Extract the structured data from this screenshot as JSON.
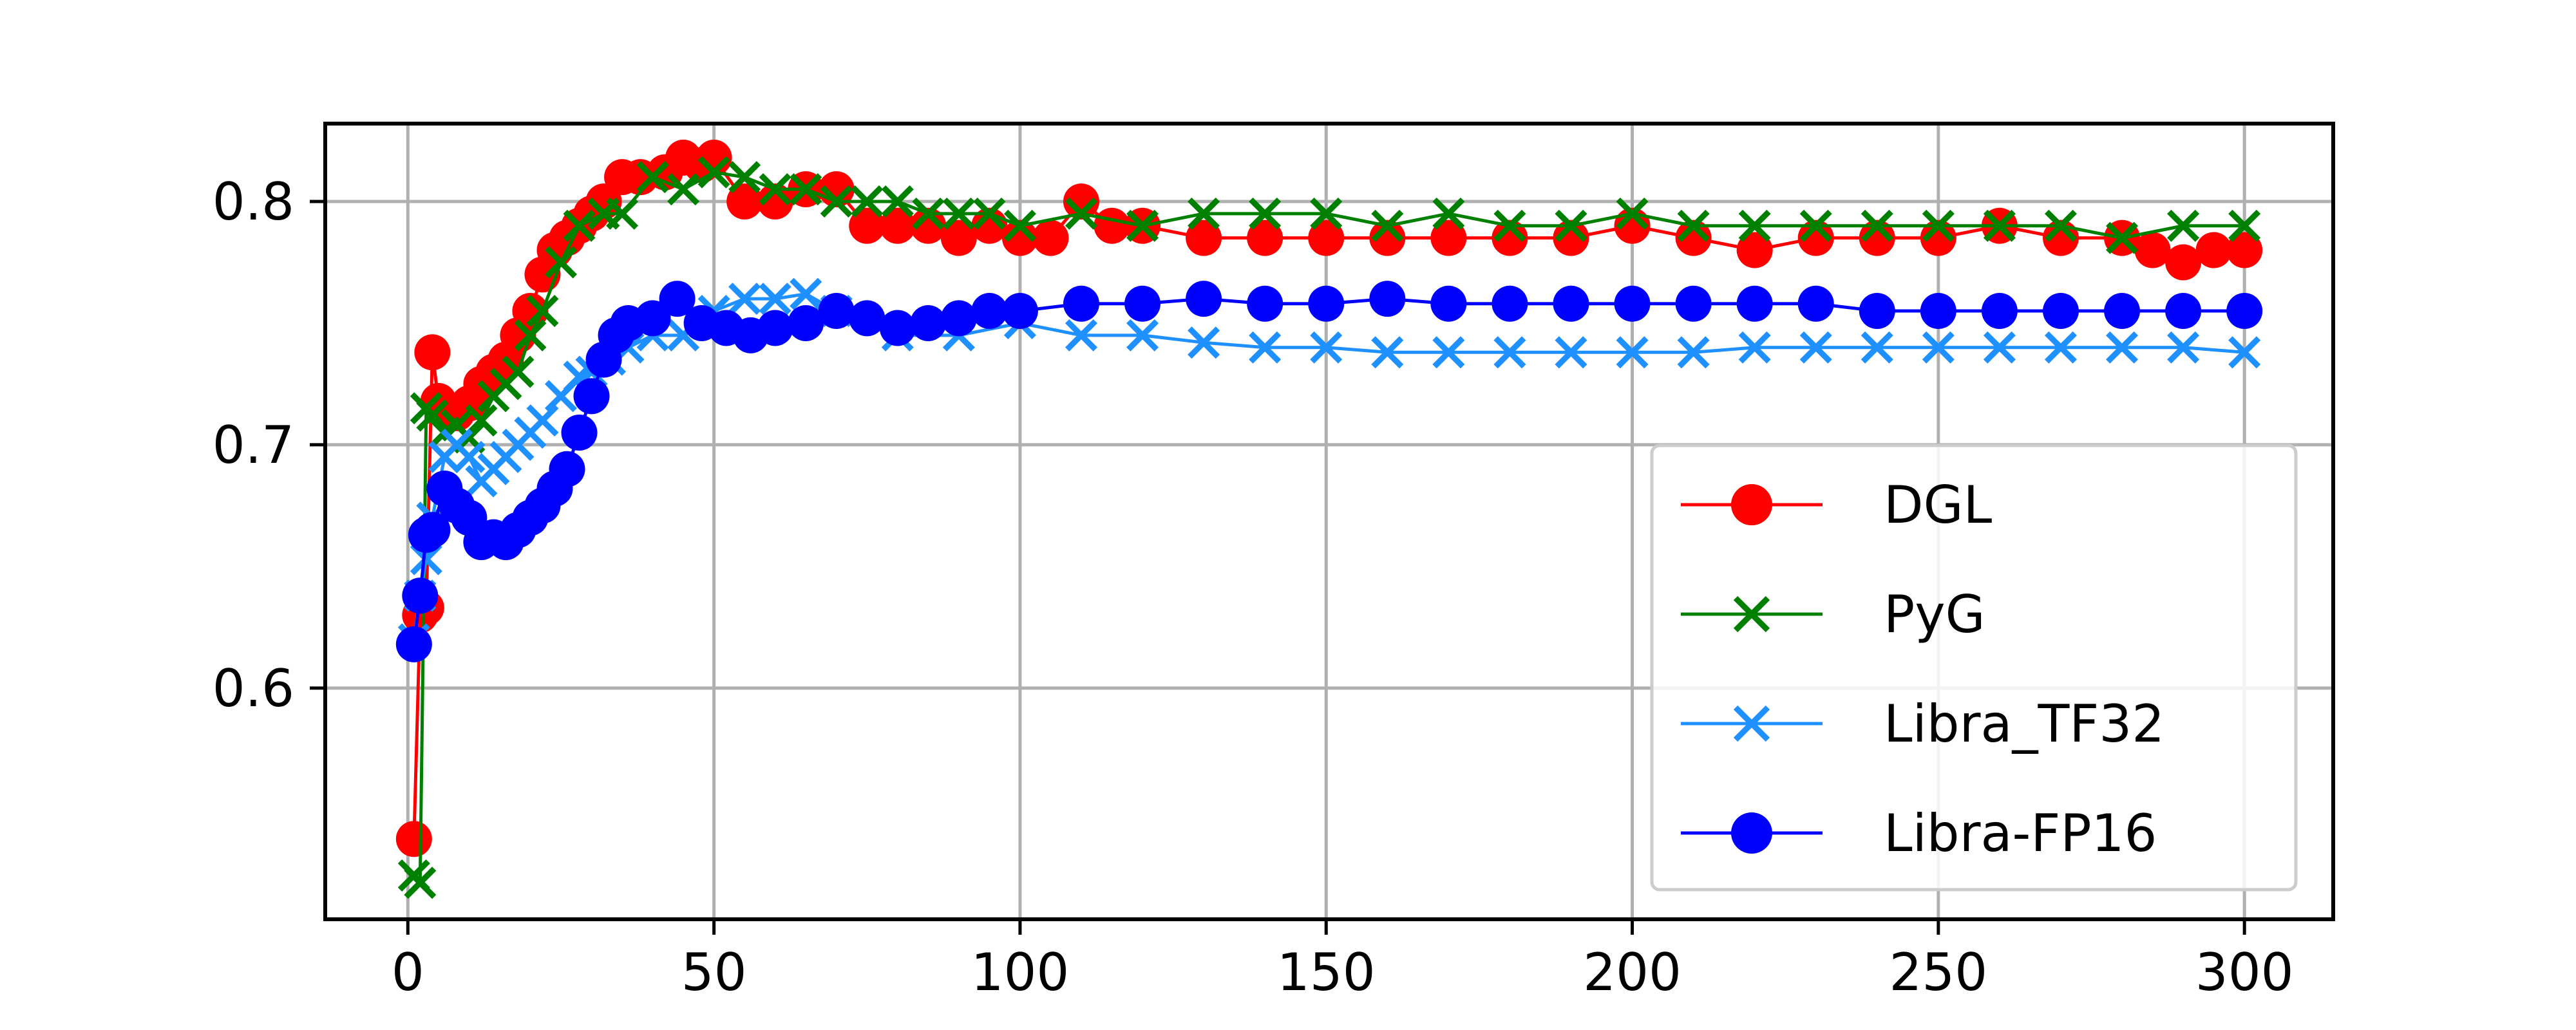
{
  "chart_data": {
    "type": "line",
    "title": "",
    "xlabel": "",
    "ylabel": "",
    "xlim": [
      -13.5,
      314.5
    ],
    "ylim": [
      0.505,
      0.832
    ],
    "grid": true,
    "legend_position": "lower-right",
    "x_ticks": [
      0,
      50,
      100,
      150,
      200,
      250,
      300
    ],
    "x_tick_labels": [
      "0",
      "50",
      "100",
      "150",
      "200",
      "250",
      "300"
    ],
    "y_ticks": [
      0.6,
      0.7,
      0.8
    ],
    "y_tick_labels": [
      "0.6",
      "0.7",
      "0.8"
    ],
    "series": [
      {
        "name": "DGL",
        "color": "#ff0000",
        "marker": "circle",
        "x": [
          1,
          2,
          3,
          4,
          5,
          6,
          8,
          10,
          12,
          14,
          16,
          18,
          20,
          22,
          24,
          26,
          28,
          30,
          32,
          35,
          38,
          42,
          45,
          48,
          50,
          55,
          60,
          65,
          70,
          75,
          80,
          85,
          90,
          95,
          100,
          105,
          110,
          115,
          120,
          130,
          140,
          150,
          160,
          170,
          180,
          190,
          200,
          210,
          220,
          230,
          240,
          250,
          260,
          270,
          280,
          285,
          290,
          295,
          300
        ],
        "y": [
          0.538,
          0.63,
          0.633,
          0.738,
          0.718,
          0.715,
          0.713,
          0.717,
          0.725,
          0.73,
          0.735,
          0.745,
          0.755,
          0.77,
          0.78,
          0.785,
          0.79,
          0.795,
          0.8,
          0.81,
          0.81,
          0.812,
          0.818,
          0.815,
          0.818,
          0.8,
          0.8,
          0.805,
          0.805,
          0.79,
          0.79,
          0.79,
          0.785,
          0.79,
          0.785,
          0.785,
          0.8,
          0.79,
          0.79,
          0.785,
          0.785,
          0.785,
          0.785,
          0.785,
          0.785,
          0.785,
          0.79,
          0.785,
          0.78,
          0.785,
          0.785,
          0.785,
          0.79,
          0.785,
          0.785,
          0.78,
          0.775,
          0.78,
          0.78
        ]
      },
      {
        "name": "PyG",
        "color": "#008000",
        "marker": "x",
        "x": [
          1,
          2,
          3,
          4,
          6,
          8,
          10,
          12,
          14,
          16,
          18,
          20,
          22,
          25,
          28,
          32,
          35,
          40,
          45,
          50,
          55,
          60,
          65,
          70,
          75,
          80,
          85,
          90,
          95,
          100,
          110,
          120,
          130,
          140,
          150,
          160,
          170,
          180,
          190,
          200,
          210,
          220,
          230,
          240,
          250,
          260,
          270,
          280,
          290,
          300
        ],
        "y": [
          0.523,
          0.52,
          0.715,
          0.712,
          0.705,
          0.708,
          0.703,
          0.71,
          0.72,
          0.725,
          0.73,
          0.745,
          0.755,
          0.775,
          0.79,
          0.795,
          0.795,
          0.81,
          0.805,
          0.812,
          0.81,
          0.805,
          0.805,
          0.8,
          0.8,
          0.8,
          0.795,
          0.795,
          0.795,
          0.79,
          0.795,
          0.79,
          0.795,
          0.795,
          0.795,
          0.79,
          0.795,
          0.79,
          0.79,
          0.795,
          0.79,
          0.79,
          0.79,
          0.79,
          0.79,
          0.79,
          0.79,
          0.785,
          0.79,
          0.79
        ]
      },
      {
        "name": "Libra_TF32",
        "color": "#1e90ff",
        "marker": "x",
        "x": [
          1,
          2,
          3,
          4,
          6,
          8,
          10,
          12,
          14,
          16,
          18,
          20,
          22,
          25,
          28,
          30,
          33,
          36,
          40,
          45,
          50,
          55,
          60,
          65,
          70,
          80,
          90,
          100,
          110,
          120,
          130,
          140,
          150,
          160,
          170,
          180,
          190,
          200,
          210,
          220,
          230,
          240,
          250,
          260,
          270,
          280,
          290,
          300
        ],
        "y": [
          0.62,
          0.638,
          0.653,
          0.67,
          0.695,
          0.7,
          0.695,
          0.685,
          0.69,
          0.695,
          0.7,
          0.705,
          0.71,
          0.72,
          0.728,
          0.73,
          0.735,
          0.74,
          0.745,
          0.745,
          0.755,
          0.76,
          0.76,
          0.762,
          0.755,
          0.745,
          0.745,
          0.75,
          0.745,
          0.745,
          0.742,
          0.74,
          0.74,
          0.738,
          0.738,
          0.738,
          0.738,
          0.738,
          0.738,
          0.74,
          0.74,
          0.74,
          0.74,
          0.74,
          0.74,
          0.74,
          0.74,
          0.738
        ]
      },
      {
        "name": "Libra-FP16",
        "color": "#0000ff",
        "marker": "circle",
        "x": [
          1,
          2,
          3,
          4,
          6,
          8,
          10,
          12,
          14,
          16,
          18,
          20,
          22,
          24,
          26,
          28,
          30,
          32,
          34,
          36,
          40,
          44,
          48,
          52,
          56,
          60,
          65,
          70,
          75,
          80,
          85,
          90,
          95,
          100,
          110,
          120,
          130,
          140,
          150,
          160,
          170,
          180,
          190,
          200,
          210,
          220,
          230,
          240,
          250,
          260,
          270,
          280,
          290,
          300
        ],
        "y": [
          0.618,
          0.638,
          0.663,
          0.665,
          0.682,
          0.675,
          0.67,
          0.66,
          0.662,
          0.66,
          0.665,
          0.67,
          0.675,
          0.682,
          0.69,
          0.705,
          0.72,
          0.735,
          0.745,
          0.75,
          0.752,
          0.76,
          0.75,
          0.748,
          0.745,
          0.748,
          0.75,
          0.755,
          0.752,
          0.748,
          0.75,
          0.752,
          0.755,
          0.755,
          0.758,
          0.758,
          0.76,
          0.758,
          0.758,
          0.76,
          0.758,
          0.758,
          0.758,
          0.758,
          0.758,
          0.758,
          0.758,
          0.755,
          0.755,
          0.755,
          0.755,
          0.755,
          0.755,
          0.755
        ]
      }
    ]
  }
}
